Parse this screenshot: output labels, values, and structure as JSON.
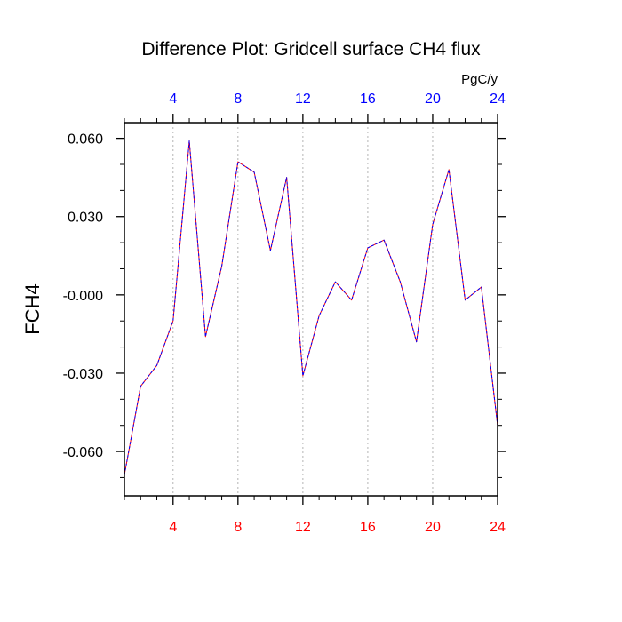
{
  "chart_data": {
    "type": "line",
    "title": "Difference Plot: Gridcell surface CH4 flux",
    "ylabel": "FCH4",
    "units": "PgC/y",
    "xlim": [
      1,
      24
    ],
    "ylim": [
      -0.077,
      0.066
    ],
    "xticks_major": [
      4,
      8,
      12,
      16,
      20,
      24
    ],
    "xticks_minor": [
      1,
      2,
      3,
      5,
      6,
      7,
      9,
      10,
      11,
      13,
      14,
      15,
      17,
      18,
      19,
      21,
      22,
      23
    ],
    "xtick_labels_bottom": [
      "4",
      "8",
      "12",
      "16",
      "20",
      "24"
    ],
    "xtick_labels_top": [
      "4",
      "8",
      "12",
      "16",
      "20",
      "24"
    ],
    "yticks_major": [
      0.06,
      0.03,
      0.0,
      -0.03,
      -0.06
    ],
    "ytick_labels": [
      "0.060",
      "0.030",
      "-0.000",
      "-0.030",
      "-0.060"
    ],
    "yticks_minor": [
      0.05,
      0.04,
      0.02,
      0.01,
      -0.01,
      -0.02,
      -0.04,
      -0.05,
      -0.07
    ],
    "grid": "vertical dotted lines at major x ticks",
    "colors": {
      "bottom_tick_labels": "#ff0000",
      "top_tick_labels": "#0000ff",
      "series_a": "#ff0000",
      "series_b": "#0000ff"
    },
    "series": [
      {
        "color": "#ff0000",
        "style": "solid",
        "x": [
          1,
          2,
          3,
          4,
          5,
          6,
          7,
          8,
          9,
          10,
          11,
          12,
          13,
          14,
          15,
          16,
          17,
          18,
          19,
          20,
          21,
          22,
          23,
          24
        ],
        "values": [
          -0.069,
          -0.035,
          -0.027,
          -0.01,
          0.059,
          -0.016,
          0.011,
          0.051,
          0.047,
          0.017,
          0.045,
          -0.031,
          -0.008,
          0.005,
          -0.002,
          0.018,
          0.021,
          0.005,
          -0.018,
          0.027,
          0.048,
          -0.002,
          0.003,
          -0.05
        ]
      },
      {
        "color": "#0000ff",
        "style": "dashed",
        "x": [
          1,
          2,
          3,
          4,
          5,
          6,
          7,
          8,
          9,
          10,
          11,
          12,
          13,
          14,
          15,
          16,
          17,
          18,
          19,
          20,
          21,
          22,
          23,
          24
        ],
        "values": [
          -0.069,
          -0.035,
          -0.027,
          -0.01,
          0.059,
          -0.016,
          0.011,
          0.051,
          0.047,
          0.017,
          0.045,
          -0.031,
          -0.008,
          0.005,
          -0.002,
          0.018,
          0.021,
          0.005,
          -0.018,
          0.027,
          0.048,
          -0.002,
          0.003,
          -0.05
        ]
      }
    ]
  }
}
